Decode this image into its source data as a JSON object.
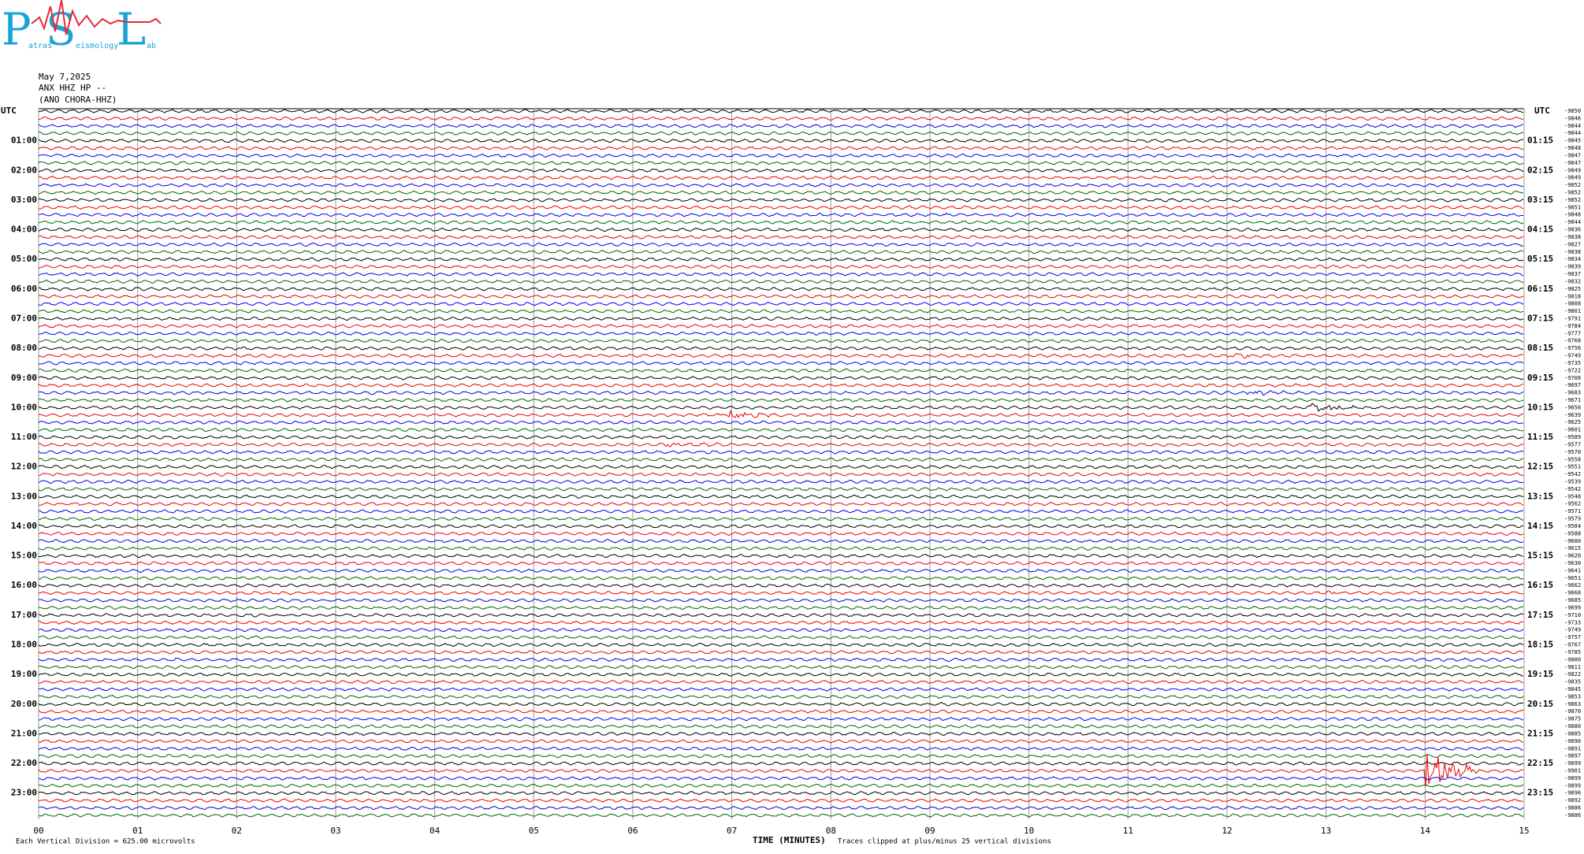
{
  "logo": {
    "letters": [
      "P",
      "S",
      "L"
    ],
    "words": [
      "atras",
      "eismology",
      "ab"
    ]
  },
  "header": {
    "date": "May 7,2025",
    "station": "ANX HHZ HP --",
    "site": "(ANO CHORA-HHZ)"
  },
  "left_axis": {
    "title": "UTC",
    "labels": [
      "01:00",
      "02:00",
      "03:00",
      "04:00",
      "05:00",
      "06:00",
      "07:00",
      "08:00",
      "09:00",
      "10:00",
      "11:00",
      "12:00",
      "13:00",
      "14:00",
      "15:00",
      "16:00",
      "17:00",
      "18:00",
      "19:00",
      "20:00",
      "21:00",
      "22:00",
      "23:00"
    ]
  },
  "right_axis": {
    "title": "UTC",
    "labels": [
      "01:15",
      "02:15",
      "03:15",
      "04:15",
      "05:15",
      "06:15",
      "07:15",
      "08:15",
      "09:15",
      "10:15",
      "11:15",
      "12:15",
      "13:15",
      "14:15",
      "15:15",
      "16:15",
      "17:15",
      "18:15",
      "19:15",
      "20:15",
      "21:15",
      "22:15",
      "23:15"
    ]
  },
  "offsets": [
    -9850,
    -9846,
    -9844,
    -9844,
    -9845,
    -9848,
    -9847,
    -9847,
    -9849,
    -9849,
    -9852,
    -9852,
    -9852,
    -9851,
    -9848,
    -9844,
    -9836,
    -9838,
    -9827,
    -9838,
    -9834,
    -9839,
    -9837,
    -9832,
    -9825,
    -9818,
    -9808,
    -9801,
    -9791,
    -9784,
    -9777,
    -9768,
    -9756,
    -9749,
    -9735,
    -9722,
    -9708,
    -9697,
    -9683,
    -9671,
    -9656,
    -9639,
    -9625,
    -9601,
    -9589,
    -9577,
    -9570,
    -9558,
    -9551,
    -9542,
    -9539,
    -9542,
    -9548,
    -9562,
    -9571,
    -9579,
    -9584,
    -9588,
    -9600,
    -9615,
    -9620,
    -9630,
    -9641,
    -9651,
    -9662,
    -9668,
    -9685,
    -9699,
    -9710,
    -9733,
    -9749,
    -9757,
    -9767,
    -9785,
    -9800,
    -9811,
    -9822,
    -9835,
    -9845,
    -9853,
    -9863,
    -9870,
    -9875,
    -9880,
    -9885,
    -9890,
    -9891,
    -9897,
    -9899,
    -9901,
    -9899,
    -9899,
    -9896,
    -9892,
    -9886,
    -9886
  ],
  "x_axis": {
    "labels": [
      "00",
      "01",
      "02",
      "03",
      "04",
      "05",
      "06",
      "07",
      "08",
      "09",
      "10",
      "11",
      "12",
      "13",
      "14",
      "15"
    ],
    "title": "TIME (MINUTES)"
  },
  "footer": {
    "scale": "Each Vertical Division =  625.00 microvolts",
    "clip": "Traces clipped at plus/minus 25 vertical divisions"
  }
}
